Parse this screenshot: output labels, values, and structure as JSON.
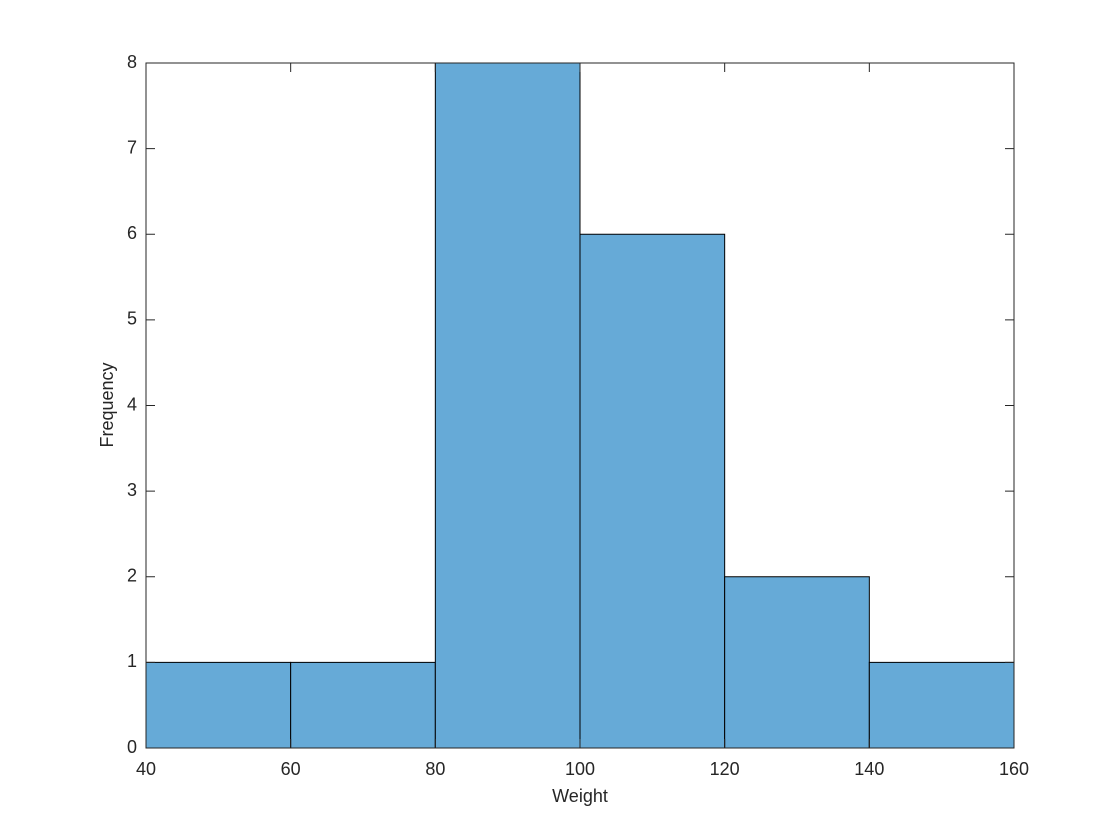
{
  "chart_data": {
    "type": "histogram",
    "xlabel": "Weight",
    "ylabel": "Frequency",
    "bins": [
      40,
      60,
      80,
      100,
      120,
      140,
      160
    ],
    "counts": [
      1,
      1,
      8,
      6,
      2,
      1
    ],
    "color": "#66aad7",
    "xlim": [
      40,
      160
    ],
    "xticks": [
      40,
      60,
      80,
      100,
      120,
      140,
      160
    ],
    "ylim": [
      0,
      8
    ],
    "yticks": [
      0,
      1,
      2,
      3,
      4,
      5,
      6,
      7,
      8
    ]
  }
}
